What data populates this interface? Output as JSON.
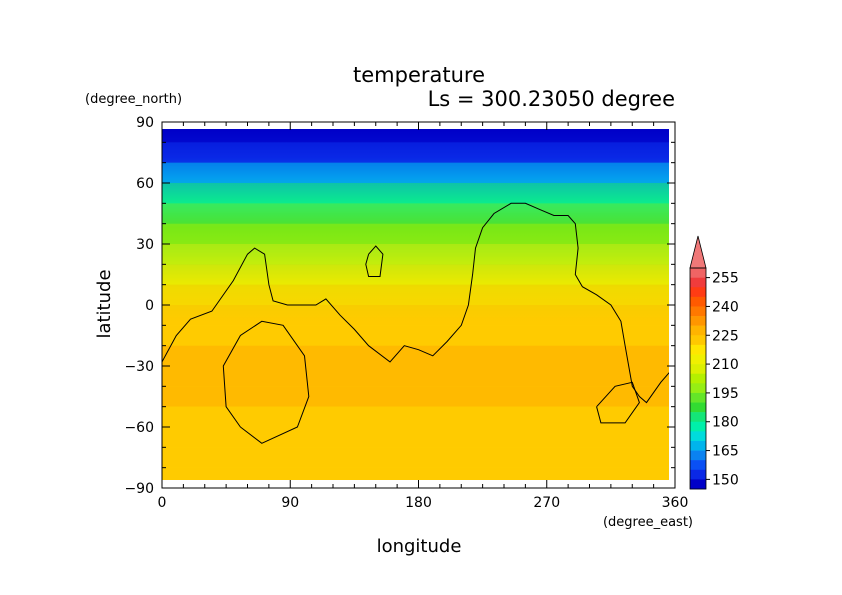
{
  "chart_data": {
    "type": "heatmap",
    "title": "temperature",
    "subtitle": "Ls = 300.23050 degree",
    "xlabel": "longitude",
    "ylabel": "latitude",
    "x_unit": "(degree_east)",
    "y_unit": "(degree_north)",
    "xlim": [
      0,
      360
    ],
    "ylim": [
      -90,
      90
    ],
    "x_ticks": [
      "0",
      "90",
      "180",
      "270",
      "360"
    ],
    "y_ticks": [
      "90",
      "60",
      "30",
      "0",
      "−30",
      "−60",
      "−90"
    ],
    "colorbar": {
      "levels": [
        145,
        150,
        155,
        160,
        165,
        170,
        175,
        180,
        185,
        190,
        195,
        200,
        205,
        210,
        215,
        220,
        225,
        230,
        235,
        240,
        245,
        250,
        255,
        260
      ],
      "labels": [
        "150",
        "165",
        "180",
        "195",
        "210",
        "225",
        "240",
        "255"
      ],
      "colors": [
        "#0000c8",
        "#0a28e6",
        "#0a50f5",
        "#0a82f0",
        "#00b4ec",
        "#00dcdc",
        "#00f0aa",
        "#14e678",
        "#32dc32",
        "#64e628",
        "#96ee14",
        "#b4f000",
        "#dcf000",
        "#f0f000",
        "#ffe600",
        "#ffc800",
        "#ffb400",
        "#ff9600",
        "#ff7800",
        "#ff5a00",
        "#ff3c14",
        "#f03c3c",
        "#f06464"
      ],
      "extend_max_color": "#f07878"
    },
    "zonal_profile": [
      {
        "lat": 85,
        "value": 146
      },
      {
        "lat": 75,
        "value": 150
      },
      {
        "lat": 65,
        "value": 166
      },
      {
        "lat": 55,
        "value": 180
      },
      {
        "lat": 45,
        "value": 190
      },
      {
        "lat": 35,
        "value": 200
      },
      {
        "lat": 25,
        "value": 210
      },
      {
        "lat": 15,
        "value": 215
      },
      {
        "lat": 5,
        "value": 220
      },
      {
        "lat": -5,
        "value": 226
      },
      {
        "lat": -15,
        "value": 228
      },
      {
        "lat": -25,
        "value": 230
      },
      {
        "lat": -35,
        "value": 234
      },
      {
        "lat": -45,
        "value": 231
      },
      {
        "lat": -55,
        "value": 229
      },
      {
        "lat": -65,
        "value": 226
      },
      {
        "lat": -75,
        "value": 227
      },
      {
        "lat": -85,
        "value": 227
      }
    ],
    "coastlines": [
      [
        [
          0,
          -28
        ],
        [
          10,
          -15
        ],
        [
          20,
          -7
        ],
        [
          35,
          -3
        ],
        [
          50,
          12
        ],
        [
          60,
          25
        ],
        [
          65,
          28
        ],
        [
          72,
          25
        ],
        [
          75,
          10
        ],
        [
          78,
          2
        ],
        [
          88,
          0
        ],
        [
          100,
          0
        ],
        [
          108,
          0
        ],
        [
          115,
          3
        ],
        [
          125,
          -5
        ],
        [
          135,
          -12
        ],
        [
          145,
          -20
        ],
        [
          160,
          -28
        ],
        [
          170,
          -20
        ],
        [
          180,
          -22
        ],
        [
          190,
          -25
        ],
        [
          200,
          -18
        ],
        [
          210,
          -10
        ],
        [
          215,
          0
        ],
        [
          218,
          15
        ],
        [
          220,
          28
        ],
        [
          225,
          38
        ],
        [
          233,
          45
        ],
        [
          245,
          50
        ],
        [
          255,
          50
        ],
        [
          265,
          47
        ],
        [
          275,
          44
        ],
        [
          285,
          44
        ],
        [
          290,
          40
        ],
        [
          292,
          28
        ],
        [
          290,
          15
        ],
        [
          295,
          9
        ],
        [
          305,
          5
        ],
        [
          315,
          0
        ],
        [
          322,
          -8
        ],
        [
          325,
          -20
        ],
        [
          330,
          -40
        ],
        [
          335,
          -45
        ],
        [
          340,
          -48
        ],
        [
          350,
          -38
        ],
        [
          360,
          -30
        ]
      ],
      [
        [
          145,
          25
        ],
        [
          150,
          29
        ],
        [
          155,
          25
        ],
        [
          153,
          14
        ],
        [
          145,
          14
        ],
        [
          143,
          20
        ],
        [
          145,
          25
        ]
      ],
      [
        [
          55,
          -60
        ],
        [
          45,
          -50
        ],
        [
          43,
          -30
        ],
        [
          55,
          -15
        ],
        [
          70,
          -8
        ],
        [
          85,
          -10
        ],
        [
          100,
          -25
        ],
        [
          103,
          -45
        ],
        [
          95,
          -60
        ],
        [
          70,
          -68
        ],
        [
          55,
          -60
        ]
      ],
      [
        [
          305,
          -50
        ],
        [
          318,
          -40
        ],
        [
          330,
          -38
        ],
        [
          335,
          -48
        ],
        [
          325,
          -58
        ],
        [
          308,
          -58
        ],
        [
          305,
          -50
        ]
      ]
    ]
  }
}
